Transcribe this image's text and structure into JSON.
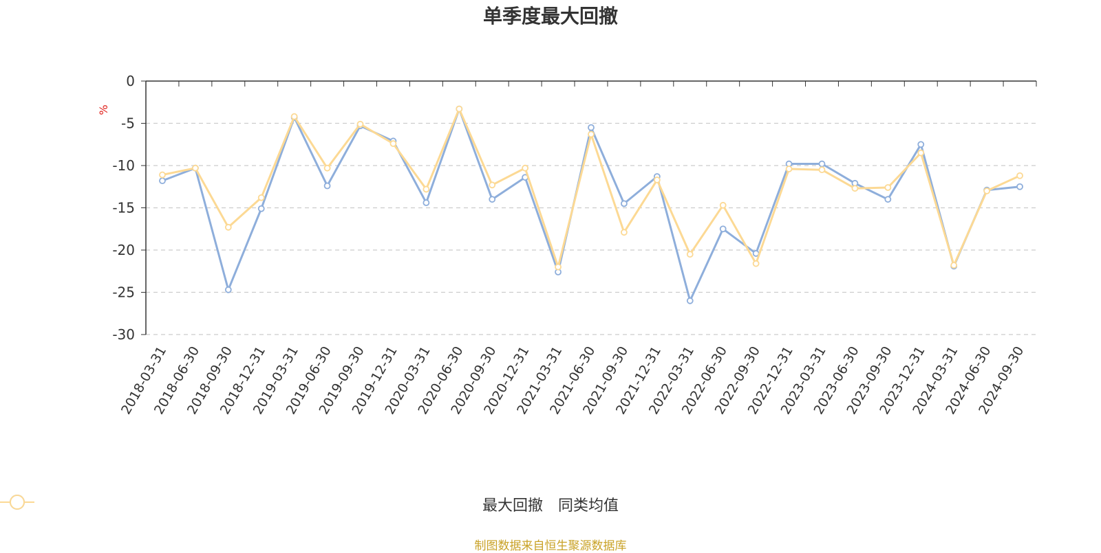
{
  "title": "单季度最大回撤",
  "footer": "制图数据来自恒生聚源数据库",
  "chart_data": {
    "type": "line",
    "title": "单季度最大回撤",
    "ylabel": "%",
    "ylim": [
      -30,
      0
    ],
    "yticks": [
      0,
      -5,
      -10,
      -15,
      -20,
      -25,
      -30
    ],
    "grid": true,
    "legend_position": "bottom",
    "categories": [
      "2018-03-31",
      "2018-06-30",
      "2018-09-30",
      "2018-12-31",
      "2019-03-31",
      "2019-06-30",
      "2019-09-30",
      "2019-12-31",
      "2020-03-31",
      "2020-06-30",
      "2020-09-30",
      "2020-12-31",
      "2021-03-31",
      "2021-06-30",
      "2021-09-30",
      "2021-12-31",
      "2022-03-31",
      "2022-06-30",
      "2022-09-30",
      "2022-12-31",
      "2023-03-31",
      "2023-06-30",
      "2023-09-30",
      "2023-12-31",
      "2024-03-31",
      "2024-06-30",
      "2024-09-30"
    ],
    "series": [
      {
        "name": "最大回撤",
        "color": "#8eaedb",
        "values": [
          -11.8,
          -10.3,
          -24.7,
          -15.1,
          -4.3,
          -12.4,
          -5.3,
          -7.1,
          -14.4,
          -3.3,
          -14.0,
          -11.4,
          -22.6,
          -5.5,
          -14.5,
          -11.3,
          -26.0,
          -17.5,
          -20.4,
          -9.8,
          -9.8,
          -12.1,
          -14.0,
          -7.5,
          -21.9,
          -12.9,
          -12.5
        ]
      },
      {
        "name": "同类均值",
        "color": "#fcd994",
        "values": [
          -11.1,
          -10.3,
          -17.3,
          -13.8,
          -4.2,
          -10.3,
          -5.1,
          -7.4,
          -12.8,
          -3.3,
          -12.3,
          -10.3,
          -22.0,
          -6.3,
          -17.9,
          -11.7,
          -20.5,
          -14.7,
          -21.6,
          -10.4,
          -10.5,
          -12.7,
          -12.6,
          -8.5,
          -21.8,
          -13.0,
          -11.2
        ]
      }
    ]
  }
}
